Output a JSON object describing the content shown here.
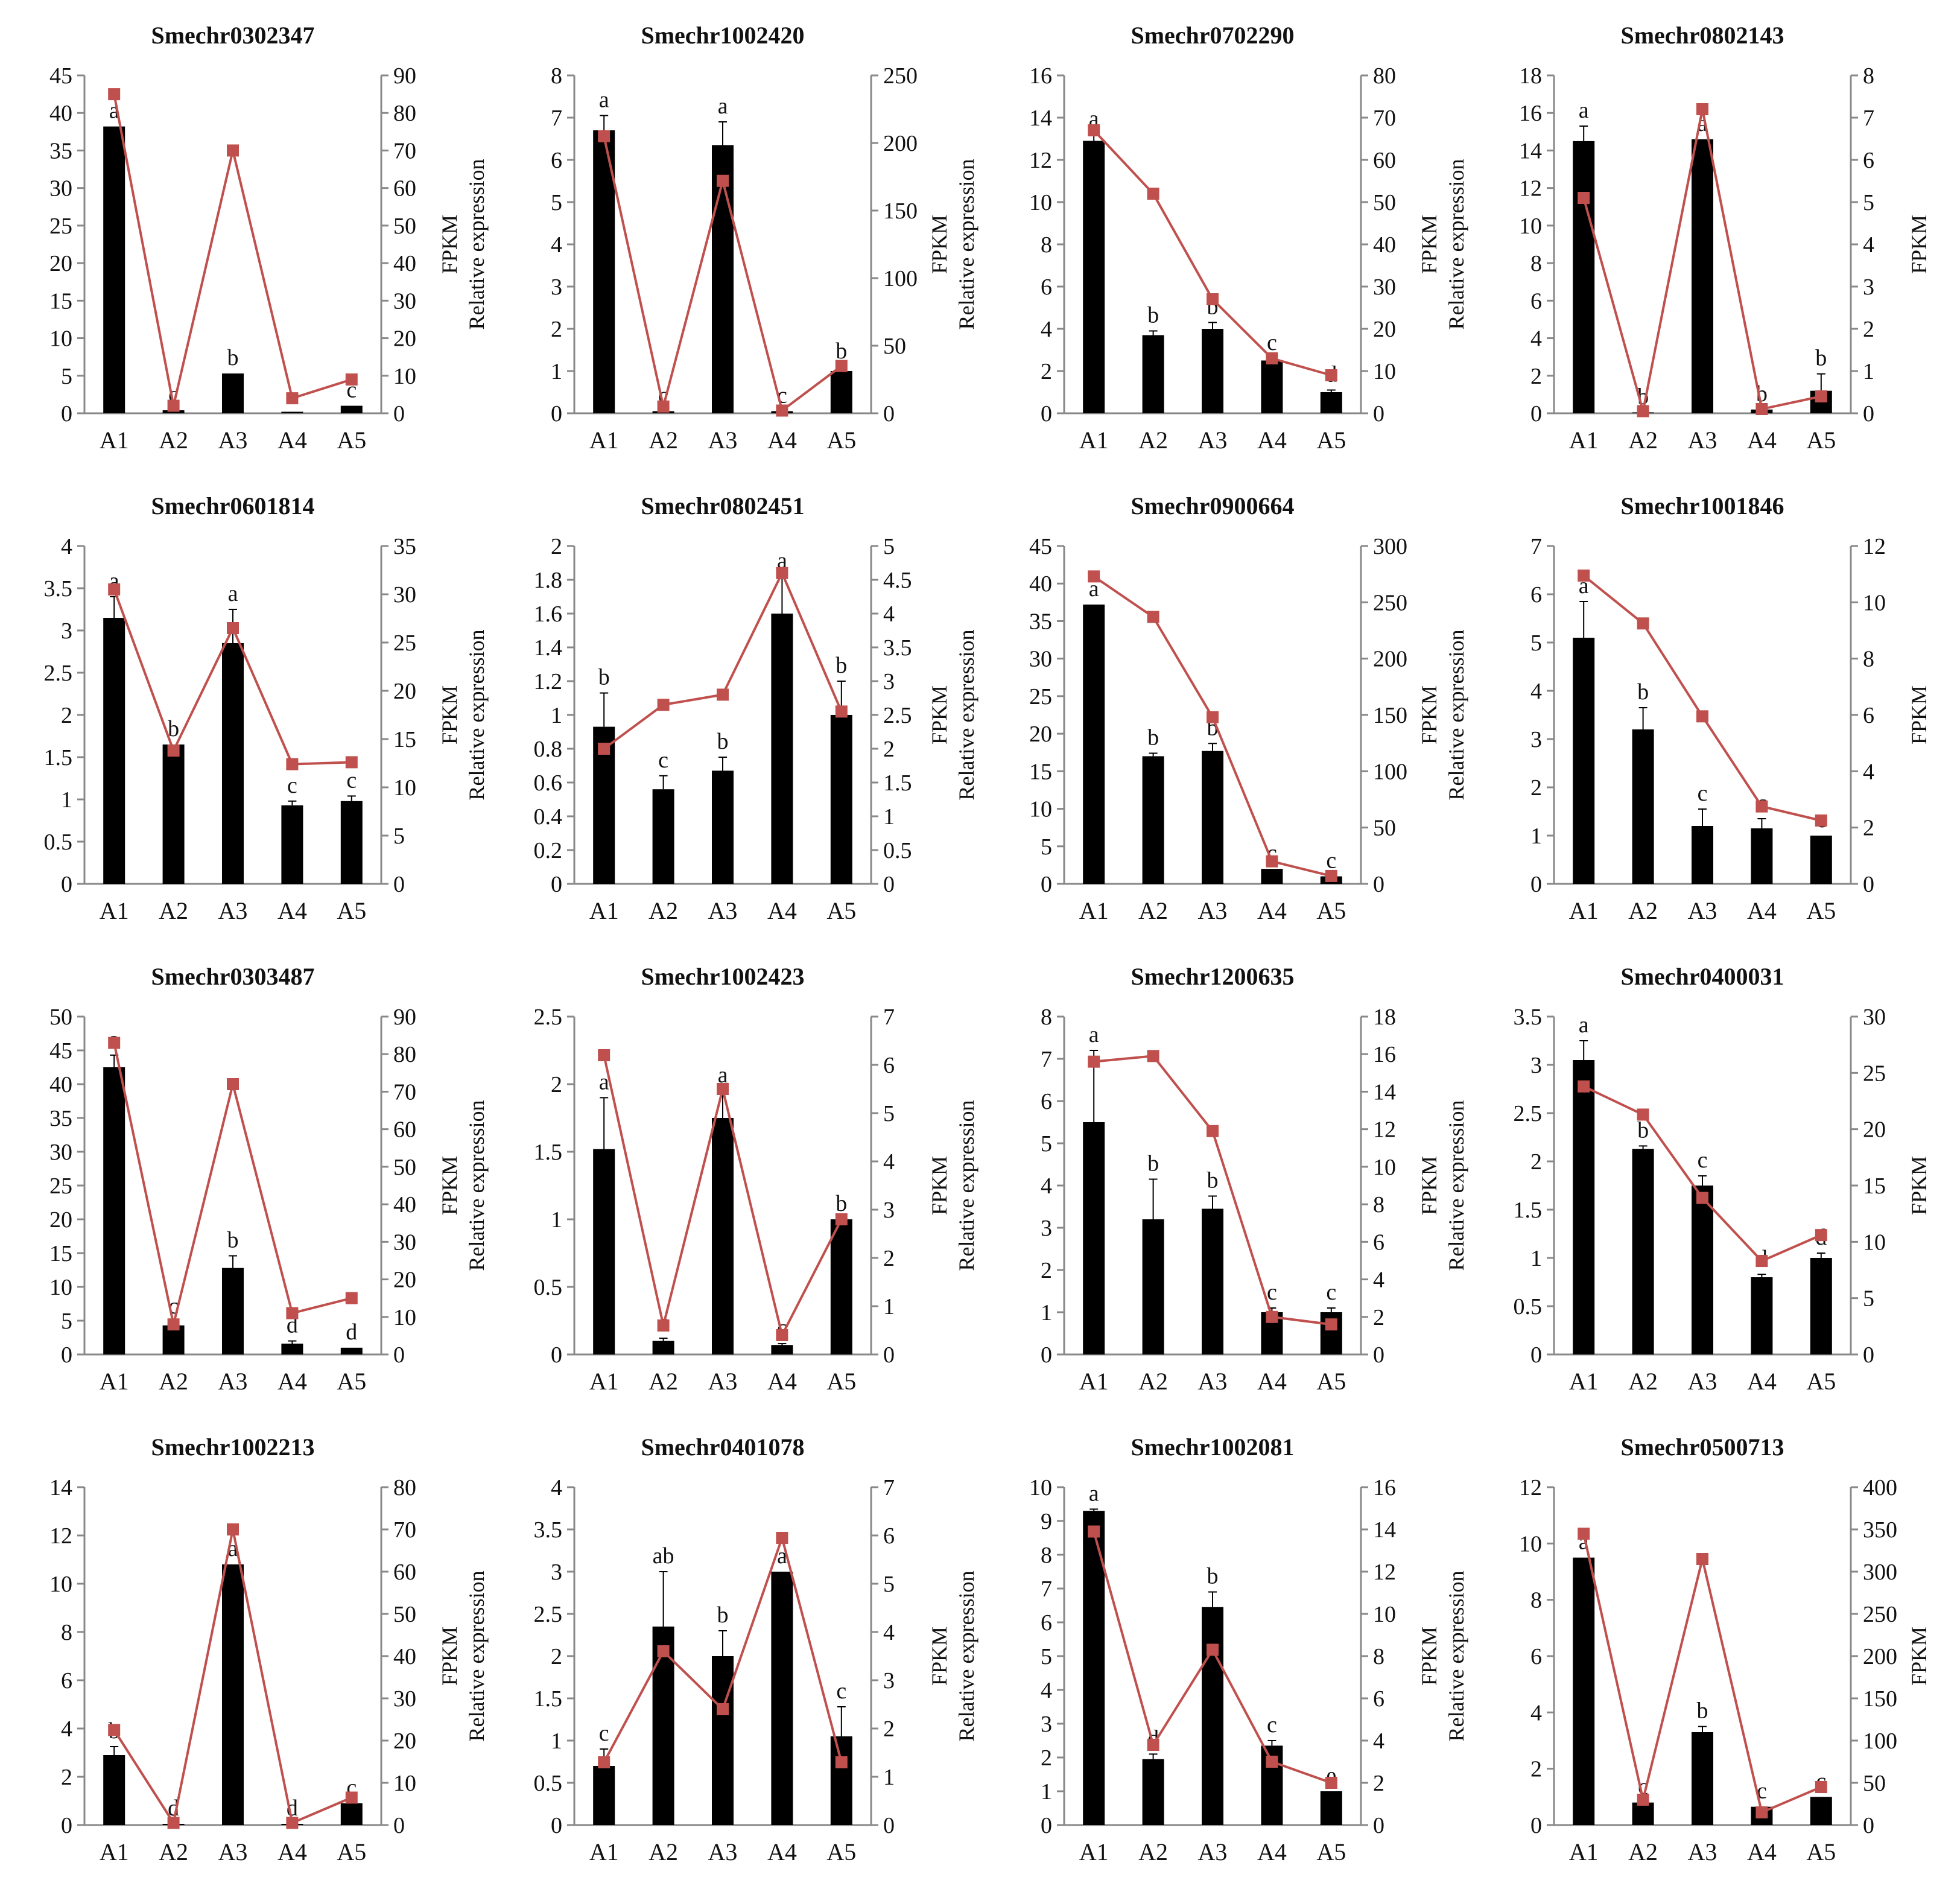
{
  "figure": {
    "categories": [
      "A1",
      "A2",
      "A3",
      "A4",
      "A5"
    ]
  },
  "colors": {
    "bar": "#000000",
    "line": "#C0504D",
    "axis": "#888888",
    "text": "#111111"
  },
  "chart_data": [
    {
      "type": "bar+line",
      "title": "Smechr0302347",
      "ylabel": "Relative expression",
      "y2label": "FPKM",
      "categories": [
        "A1",
        "A2",
        "A3",
        "A4",
        "A5"
      ],
      "ylim": [
        0,
        45
      ],
      "yticks": [
        0,
        5,
        10,
        15,
        20,
        25,
        30,
        35,
        40,
        45
      ],
      "y2lim": [
        0,
        90
      ],
      "y2ticks": [
        0,
        10,
        20,
        30,
        40,
        50,
        60,
        70,
        80,
        90
      ],
      "series": [
        {
          "name": "Relative expression",
          "type": "bar",
          "values": [
            38.2,
            0.4,
            5.3,
            0.2,
            1.0
          ],
          "errors": [
            0,
            0,
            0,
            0,
            0
          ]
        },
        {
          "name": "FPKM",
          "type": "line",
          "values": [
            85,
            2,
            70,
            4,
            9
          ]
        }
      ],
      "labels": [
        "a",
        "c",
        "b",
        "c",
        "c"
      ]
    },
    {
      "type": "bar+line",
      "title": "Smechr1002420",
      "ylabel": "Relative expression",
      "y2label": "FPKM",
      "categories": [
        "A1",
        "A2",
        "A3",
        "A4",
        "A5"
      ],
      "ylim": [
        0,
        8
      ],
      "yticks": [
        0,
        1,
        2,
        3,
        4,
        5,
        6,
        7,
        8
      ],
      "y2lim": [
        0,
        250
      ],
      "y2ticks": [
        0,
        50,
        100,
        150,
        200,
        250
      ],
      "series": [
        {
          "name": "Relative expression",
          "type": "bar",
          "values": [
            6.7,
            0.05,
            6.35,
            0.05,
            1.0
          ],
          "errors": [
            0.35,
            0,
            0.55,
            0,
            0.1
          ]
        },
        {
          "name": "FPKM",
          "type": "line",
          "values": [
            205,
            5,
            172,
            2,
            35
          ]
        }
      ],
      "labels": [
        "a",
        "c",
        "a",
        "c",
        "b"
      ]
    },
    {
      "type": "bar+line",
      "title": "Smechr0702290",
      "ylabel": "Relative expression",
      "y2label": "FPKM",
      "categories": [
        "A1",
        "A2",
        "A3",
        "A4",
        "A5"
      ],
      "ylim": [
        0,
        16
      ],
      "yticks": [
        0,
        2,
        4,
        6,
        8,
        10,
        12,
        14,
        16
      ],
      "y2lim": [
        0,
        80
      ],
      "y2ticks": [
        0,
        10,
        20,
        30,
        40,
        50,
        60,
        70,
        80
      ],
      "series": [
        {
          "name": "Relative expression",
          "type": "bar",
          "values": [
            12.9,
            3.7,
            4.0,
            2.5,
            1.0
          ],
          "errors": [
            0.3,
            0.2,
            0.3,
            0.1,
            0.1
          ]
        },
        {
          "name": "FPKM",
          "type": "line",
          "values": [
            67,
            52,
            27,
            13,
            9
          ]
        }
      ],
      "labels": [
        "a",
        "b",
        "b",
        "c",
        "d"
      ]
    },
    {
      "type": "bar+line",
      "title": "Smechr0802143",
      "ylabel": "Relative expression",
      "y2label": "FPKM",
      "categories": [
        "A1",
        "A2",
        "A3",
        "A4",
        "A5"
      ],
      "ylim": [
        0,
        18
      ],
      "yticks": [
        0,
        2,
        4,
        6,
        8,
        10,
        12,
        14,
        16,
        18
      ],
      "y2lim": [
        0,
        8
      ],
      "y2ticks": [
        0,
        1,
        2,
        3,
        4,
        5,
        6,
        7,
        8
      ],
      "series": [
        {
          "name": "Relative expression",
          "type": "bar",
          "values": [
            14.5,
            0.05,
            14.6,
            0.2,
            1.2
          ],
          "errors": [
            0.8,
            0,
            0,
            0,
            0.9
          ]
        },
        {
          "name": "FPKM",
          "type": "line",
          "values": [
            5.1,
            0.05,
            7.2,
            0.1,
            0.4
          ]
        }
      ],
      "labels": [
        "a",
        "b",
        "a",
        "b",
        "b"
      ]
    },
    {
      "type": "bar+line",
      "title": "Smechr0601814",
      "ylabel": "Relative expression",
      "y2label": "FPKM",
      "categories": [
        "A1",
        "A2",
        "A3",
        "A4",
        "A5"
      ],
      "ylim": [
        0,
        4
      ],
      "yticks": [
        0,
        0.5,
        1,
        1.5,
        2,
        2.5,
        3,
        3.5,
        4
      ],
      "y2lim": [
        0,
        35
      ],
      "y2ticks": [
        0,
        5,
        10,
        15,
        20,
        25,
        30,
        35
      ],
      "series": [
        {
          "name": "Relative expression",
          "type": "bar",
          "values": [
            3.15,
            1.65,
            2.85,
            0.93,
            0.98
          ],
          "errors": [
            0.25,
            0,
            0.4,
            0.05,
            0.06
          ]
        },
        {
          "name": "FPKM",
          "type": "line",
          "values": [
            30.5,
            13.8,
            26.5,
            12.4,
            12.6
          ]
        }
      ],
      "labels": [
        "a",
        "b",
        "a",
        "c",
        "c"
      ]
    },
    {
      "type": "bar+line",
      "title": "Smechr0802451",
      "ylabel": "Relative expression",
      "y2label": "FPKM",
      "categories": [
        "A1",
        "A2",
        "A3",
        "A4",
        "A5"
      ],
      "ylim": [
        0,
        2
      ],
      "yticks": [
        0,
        0.2,
        0.4,
        0.6,
        0.8,
        1,
        1.2,
        1.4,
        1.6,
        1.8,
        2
      ],
      "y2lim": [
        0,
        5
      ],
      "y2ticks": [
        0,
        0.5,
        1,
        1.5,
        2,
        2.5,
        3,
        3.5,
        4,
        4.5,
        5
      ],
      "series": [
        {
          "name": "Relative expression",
          "type": "bar",
          "values": [
            0.93,
            0.56,
            0.67,
            1.6,
            1.0
          ],
          "errors": [
            0.2,
            0.08,
            0.08,
            0.22,
            0.2
          ]
        },
        {
          "name": "FPKM",
          "type": "line",
          "values": [
            2.0,
            2.65,
            2.8,
            4.6,
            2.55
          ]
        }
      ],
      "labels": [
        "b",
        "c",
        "b",
        "a",
        "b"
      ]
    },
    {
      "type": "bar+line",
      "title": "Smechr0900664",
      "ylabel": "Relative expression",
      "y2label": "FPKM",
      "categories": [
        "A1",
        "A2",
        "A3",
        "A4",
        "A5"
      ],
      "ylim": [
        0,
        45
      ],
      "yticks": [
        0,
        5,
        10,
        15,
        20,
        25,
        30,
        35,
        40,
        45
      ],
      "y2lim": [
        0,
        300
      ],
      "y2ticks": [
        0,
        50,
        100,
        150,
        200,
        250,
        300
      ],
      "series": [
        {
          "name": "Relative expression",
          "type": "bar",
          "values": [
            37.2,
            17.0,
            17.7,
            2.0,
            1.0
          ],
          "errors": [
            0,
            0.4,
            1.0,
            0,
            0
          ]
        },
        {
          "name": "FPKM",
          "type": "line",
          "values": [
            273,
            237,
            148,
            20,
            7
          ]
        }
      ],
      "labels": [
        "a",
        "b",
        "b",
        "c",
        "c"
      ]
    },
    {
      "type": "bar+line",
      "title": "Smechr1001846",
      "ylabel": "Relative expression",
      "y2label": "FPKM",
      "categories": [
        "A1",
        "A2",
        "A3",
        "A4",
        "A5"
      ],
      "ylim": [
        0,
        7
      ],
      "yticks": [
        0,
        1,
        2,
        3,
        4,
        5,
        6,
        7
      ],
      "y2lim": [
        0,
        12
      ],
      "y2ticks": [
        0,
        2,
        4,
        6,
        8,
        10,
        12
      ],
      "series": [
        {
          "name": "Relative expression",
          "type": "bar",
          "values": [
            5.1,
            3.2,
            1.2,
            1.15,
            1.0
          ],
          "errors": [
            0.75,
            0.45,
            0.35,
            0.2,
            0
          ]
        },
        {
          "name": "FPKM",
          "type": "line",
          "values": [
            10.95,
            9.25,
            5.95,
            2.75,
            2.25
          ]
        }
      ],
      "labels": [
        "a",
        "b",
        "c",
        "c",
        "c"
      ]
    },
    {
      "type": "bar+line",
      "title": "Smechr0303487",
      "ylabel": "Relative expression",
      "y2label": "FPKM",
      "categories": [
        "A1",
        "A2",
        "A3",
        "A4",
        "A5"
      ],
      "ylim": [
        0,
        50
      ],
      "yticks": [
        0,
        5,
        10,
        15,
        20,
        25,
        30,
        35,
        40,
        45,
        50
      ],
      "y2lim": [
        0,
        90
      ],
      "y2ticks": [
        0,
        10,
        20,
        30,
        40,
        50,
        60,
        70,
        80,
        90
      ],
      "series": [
        {
          "name": "Relative expression",
          "type": "bar",
          "values": [
            42.5,
            4.3,
            12.8,
            1.6,
            1.0
          ],
          "errors": [
            1.8,
            0.5,
            1.8,
            0.4,
            0
          ]
        },
        {
          "name": "FPKM",
          "type": "line",
          "values": [
            83,
            8,
            72,
            11,
            15
          ]
        }
      ],
      "labels": [
        "a",
        "c",
        "b",
        "d",
        "d"
      ]
    },
    {
      "type": "bar+line",
      "title": "Smechr1002423",
      "ylabel": "Relative expression",
      "y2label": "FPKM",
      "categories": [
        "A1",
        "A2",
        "A3",
        "A4",
        "A5"
      ],
      "ylim": [
        0,
        2.5
      ],
      "yticks": [
        0,
        0.5,
        1,
        1.5,
        2,
        2.5
      ],
      "y2lim": [
        0,
        7
      ],
      "y2ticks": [
        0,
        1,
        2,
        3,
        4,
        5,
        6,
        7
      ],
      "series": [
        {
          "name": "Relative expression",
          "type": "bar",
          "values": [
            1.52,
            0.1,
            1.75,
            0.07,
            1.0
          ],
          "errors": [
            0.38,
            0.02,
            0.2,
            0.01,
            0
          ]
        },
        {
          "name": "FPKM",
          "type": "line",
          "values": [
            6.2,
            0.6,
            5.5,
            0.4,
            2.8
          ]
        }
      ],
      "labels": [
        "a",
        "c",
        "a",
        "c",
        "b"
      ]
    },
    {
      "type": "bar+line",
      "title": "Smechr1200635",
      "ylabel": "Relative expression",
      "y2label": "FPKM",
      "categories": [
        "A1",
        "A2",
        "A3",
        "A4",
        "A5"
      ],
      "ylim": [
        0,
        8
      ],
      "yticks": [
        0,
        1,
        2,
        3,
        4,
        5,
        6,
        7,
        8
      ],
      "y2lim": [
        0,
        18
      ],
      "y2ticks": [
        0,
        2,
        4,
        6,
        8,
        10,
        12,
        14,
        16,
        18
      ],
      "series": [
        {
          "name": "Relative expression",
          "type": "bar",
          "values": [
            5.5,
            3.2,
            3.45,
            1.0,
            1.0
          ],
          "errors": [
            1.7,
            0.95,
            0.3,
            0.1,
            0.1
          ]
        },
        {
          "name": "FPKM",
          "type": "line",
          "values": [
            15.6,
            15.9,
            11.9,
            2.0,
            1.6
          ]
        }
      ],
      "labels": [
        "a",
        "b",
        "b",
        "c",
        "c"
      ]
    },
    {
      "type": "bar+line",
      "title": "Smechr0400031",
      "ylabel": "Relative expression",
      "y2label": "FPKM",
      "categories": [
        "A1",
        "A2",
        "A3",
        "A4",
        "A5"
      ],
      "ylim": [
        0,
        3.5
      ],
      "yticks": [
        0,
        0.5,
        1,
        1.5,
        2,
        2.5,
        3,
        3.5
      ],
      "y2lim": [
        0,
        30
      ],
      "y2ticks": [
        0,
        5,
        10,
        15,
        20,
        25,
        30
      ],
      "series": [
        {
          "name": "Relative expression",
          "type": "bar",
          "values": [
            3.05,
            2.13,
            1.75,
            0.8,
            1.0
          ],
          "errors": [
            0.2,
            0.03,
            0.1,
            0.03,
            0.05
          ]
        },
        {
          "name": "FPKM",
          "type": "line",
          "values": [
            23.8,
            21.3,
            13.9,
            8.3,
            10.6
          ]
        }
      ],
      "labels": [
        "a",
        "b",
        "c",
        "d",
        "d"
      ]
    },
    {
      "type": "bar+line",
      "title": "Smechr1002213",
      "ylabel": "Relative expression",
      "y2label": "FPKM",
      "categories": [
        "A1",
        "A2",
        "A3",
        "A4",
        "A5"
      ],
      "ylim": [
        0,
        14
      ],
      "yticks": [
        0,
        2,
        4,
        6,
        8,
        10,
        12,
        14
      ],
      "y2lim": [
        0,
        80
      ],
      "y2ticks": [
        0,
        10,
        20,
        30,
        40,
        50,
        60,
        70,
        80
      ],
      "series": [
        {
          "name": "Relative expression",
          "type": "bar",
          "values": [
            2.9,
            0.05,
            10.8,
            0.05,
            0.9
          ],
          "errors": [
            0.35,
            0,
            0,
            0,
            0
          ]
        },
        {
          "name": "FPKM",
          "type": "line",
          "values": [
            22.5,
            0.5,
            70,
            0.5,
            6.5
          ]
        }
      ],
      "labels": [
        "b",
        "d",
        "a",
        "d",
        "c"
      ]
    },
    {
      "type": "bar+line",
      "title": "Smechr0401078",
      "ylabel": "Relative expression",
      "y2label": "FPKM",
      "categories": [
        "A1",
        "A2",
        "A3",
        "A4",
        "A5"
      ],
      "ylim": [
        0,
        4
      ],
      "yticks": [
        0,
        0.5,
        1,
        1.5,
        2,
        2.5,
        3,
        3.5,
        4
      ],
      "y2lim": [
        0,
        7
      ],
      "y2ticks": [
        0,
        1,
        2,
        3,
        4,
        5,
        6,
        7
      ],
      "series": [
        {
          "name": "Relative expression",
          "type": "bar",
          "values": [
            0.7,
            2.35,
            2.0,
            3.0,
            1.05
          ],
          "errors": [
            0.2,
            0.65,
            0.3,
            0,
            0.35
          ]
        },
        {
          "name": "FPKM",
          "type": "line",
          "values": [
            1.3,
            3.6,
            2.4,
            5.95,
            1.3
          ]
        }
      ],
      "labels": [
        "c",
        "ab",
        "b",
        "a",
        "c"
      ]
    },
    {
      "type": "bar+line",
      "title": "Smechr1002081",
      "ylabel": "Relative expression",
      "y2label": "FPKM",
      "categories": [
        "A1",
        "A2",
        "A3",
        "A4",
        "A5"
      ],
      "ylim": [
        0,
        10
      ],
      "yticks": [
        0,
        1,
        2,
        3,
        4,
        5,
        6,
        7,
        8,
        9,
        10
      ],
      "y2lim": [
        0,
        16
      ],
      "y2ticks": [
        0,
        2,
        4,
        6,
        8,
        10,
        12,
        14,
        16
      ],
      "series": [
        {
          "name": "Relative expression",
          "type": "bar",
          "values": [
            9.3,
            1.95,
            6.45,
            2.35,
            1.0
          ],
          "errors": [
            0.05,
            0.15,
            0.45,
            0.15,
            0
          ]
        },
        {
          "name": "FPKM",
          "type": "line",
          "values": [
            13.9,
            3.8,
            8.3,
            3.0,
            2.0
          ]
        }
      ],
      "labels": [
        "a",
        "d",
        "b",
        "c",
        "e"
      ]
    },
    {
      "type": "bar+line",
      "title": "Smechr0500713",
      "ylabel": "Relative expression",
      "y2label": "FPKM",
      "categories": [
        "A1",
        "A2",
        "A3",
        "A4",
        "A5"
      ],
      "ylim": [
        0,
        12
      ],
      "yticks": [
        0,
        2,
        4,
        6,
        8,
        10,
        12
      ],
      "y2lim": [
        0,
        400
      ],
      "y2ticks": [
        0,
        50,
        100,
        150,
        200,
        250,
        300,
        350,
        400
      ],
      "series": [
        {
          "name": "Relative expression",
          "type": "bar",
          "values": [
            9.5,
            0.8,
            3.3,
            0.65,
            1.0
          ],
          "errors": [
            0,
            0,
            0.2,
            0,
            0
          ]
        },
        {
          "name": "FPKM",
          "type": "line",
          "values": [
            345,
            30,
            315,
            15,
            45
          ]
        }
      ],
      "labels": [
        "a",
        "c",
        "b",
        "c",
        "c"
      ]
    }
  ]
}
